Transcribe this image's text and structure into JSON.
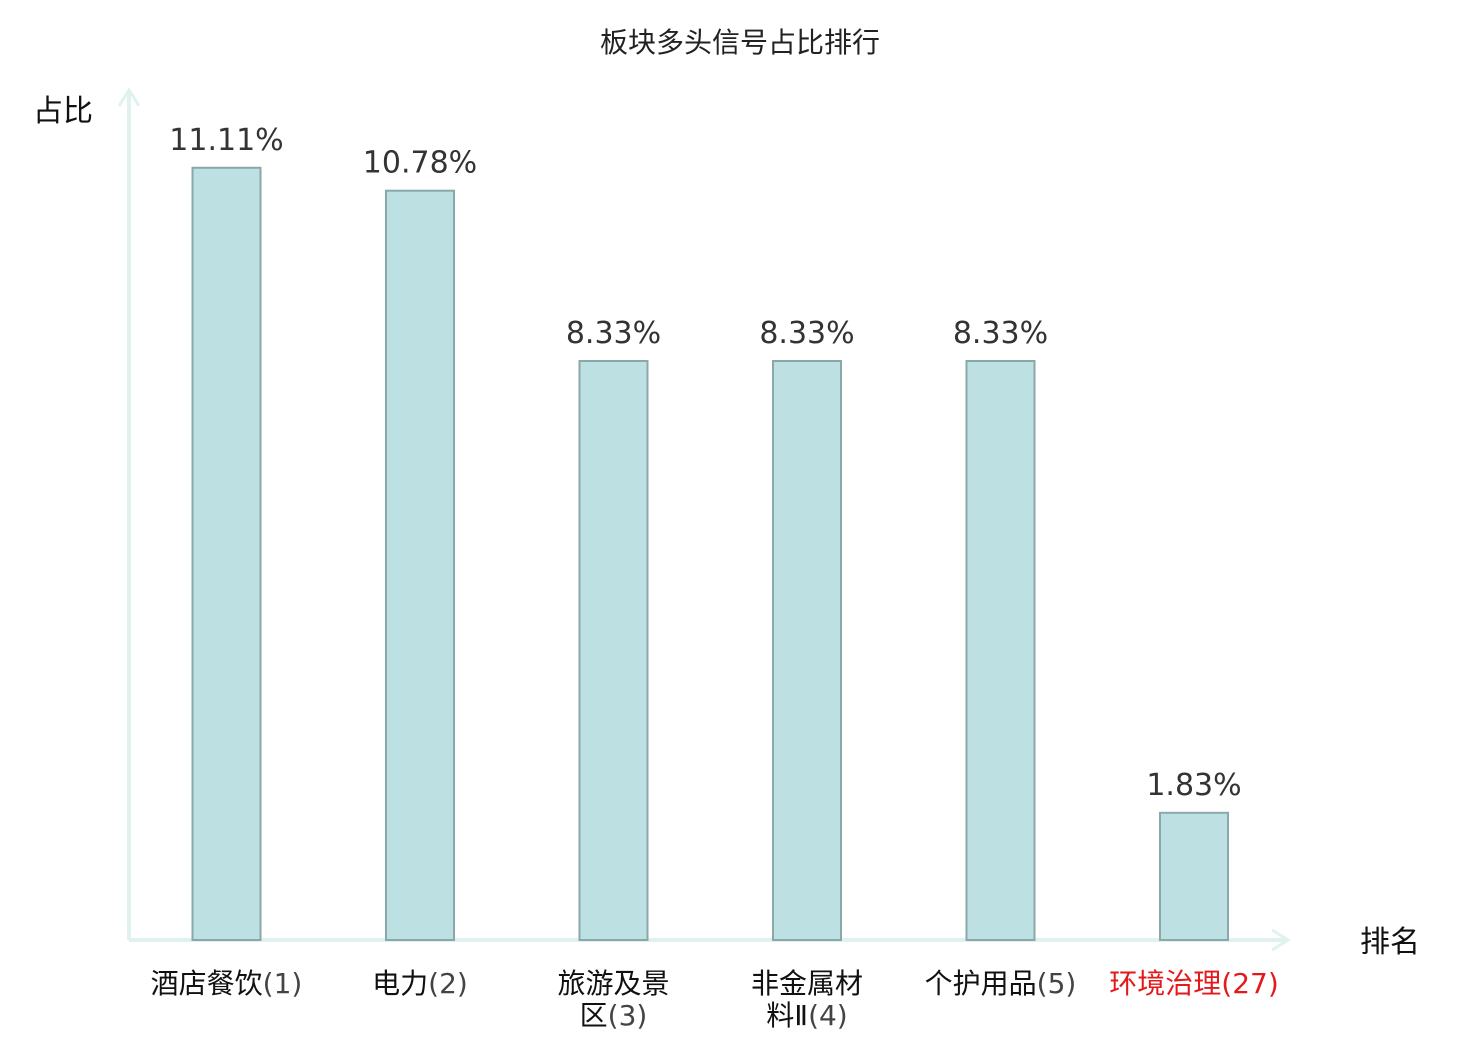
{
  "chart_data": {
    "type": "bar",
    "title": "板块多头信号占比排行",
    "ylabel": "占比",
    "xlabel": "排名",
    "ylim": [
      0,
      12.2
    ],
    "grid": false,
    "legend": "none",
    "bar_color": "#bde0e3",
    "bar_border_color": "#8aa8aa",
    "axis_color": "#e0f2ef",
    "highlight_color": "#e31a1c",
    "categories": [
      {
        "name_lines": [
          "酒店餐饮"
        ],
        "rank": "(1)",
        "highlight": false
      },
      {
        "name_lines": [
          "电力"
        ],
        "rank": "(2)",
        "highlight": false
      },
      {
        "name_lines": [
          "旅游及景",
          "区"
        ],
        "rank": "(3)",
        "highlight": false
      },
      {
        "name_lines": [
          "非金属材",
          "料Ⅱ"
        ],
        "rank": "(4)",
        "highlight": false
      },
      {
        "name_lines": [
          "个护用品"
        ],
        "rank": "(5)",
        "highlight": false
      },
      {
        "name_lines": [
          "环境治理"
        ],
        "rank": "(27)",
        "highlight": true
      }
    ],
    "values": [
      11.11,
      10.78,
      8.33,
      8.33,
      8.33,
      1.83
    ],
    "value_labels": [
      "11.11%",
      "10.78%",
      "8.33%",
      "8.33%",
      "8.33%",
      "1.83%"
    ]
  }
}
